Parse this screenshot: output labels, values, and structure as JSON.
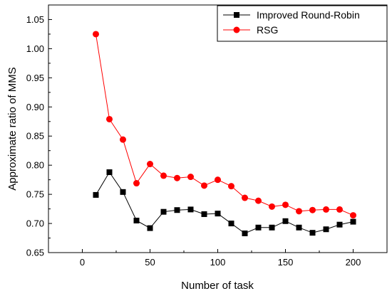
{
  "chart_data": {
    "type": "line",
    "title": "",
    "xlabel": "Number of task",
    "ylabel": "Approximate ratio of MMS",
    "xlim": [
      -25,
      225
    ],
    "ylim": [
      0.65,
      1.075
    ],
    "x_ticks": [
      0,
      50,
      100,
      150,
      200
    ],
    "x_tick_labels": [
      "0",
      "50",
      "100",
      "150",
      "200"
    ],
    "y_ticks": [
      0.65,
      0.7,
      0.75,
      0.8,
      0.85,
      0.9,
      0.95,
      1.0,
      1.05
    ],
    "y_tick_labels": [
      "0.65",
      "0.70",
      "0.75",
      "0.80",
      "0.85",
      "0.90",
      "0.95",
      "1.00",
      "1.05"
    ],
    "grid": false,
    "legend_position": "top-right",
    "x": [
      10,
      20,
      30,
      40,
      50,
      60,
      70,
      80,
      90,
      100,
      110,
      120,
      130,
      140,
      150,
      160,
      170,
      180,
      190,
      200
    ],
    "series": [
      {
        "name": "Improved Round-Robin",
        "marker": "square",
        "color": "#000000",
        "values": [
          0.749,
          0.788,
          0.754,
          0.705,
          0.692,
          0.72,
          0.723,
          0.724,
          0.716,
          0.717,
          0.7,
          0.683,
          0.693,
          0.693,
          0.704,
          0.693,
          0.684,
          0.69,
          0.698,
          0.703
        ]
      },
      {
        "name": "RSG",
        "marker": "circle",
        "color": "#ff0000",
        "values": [
          1.025,
          0.879,
          0.844,
          0.769,
          0.802,
          0.782,
          0.778,
          0.78,
          0.765,
          0.775,
          0.764,
          0.744,
          0.739,
          0.729,
          0.732,
          0.721,
          0.723,
          0.724,
          0.724,
          0.714
        ]
      }
    ]
  }
}
